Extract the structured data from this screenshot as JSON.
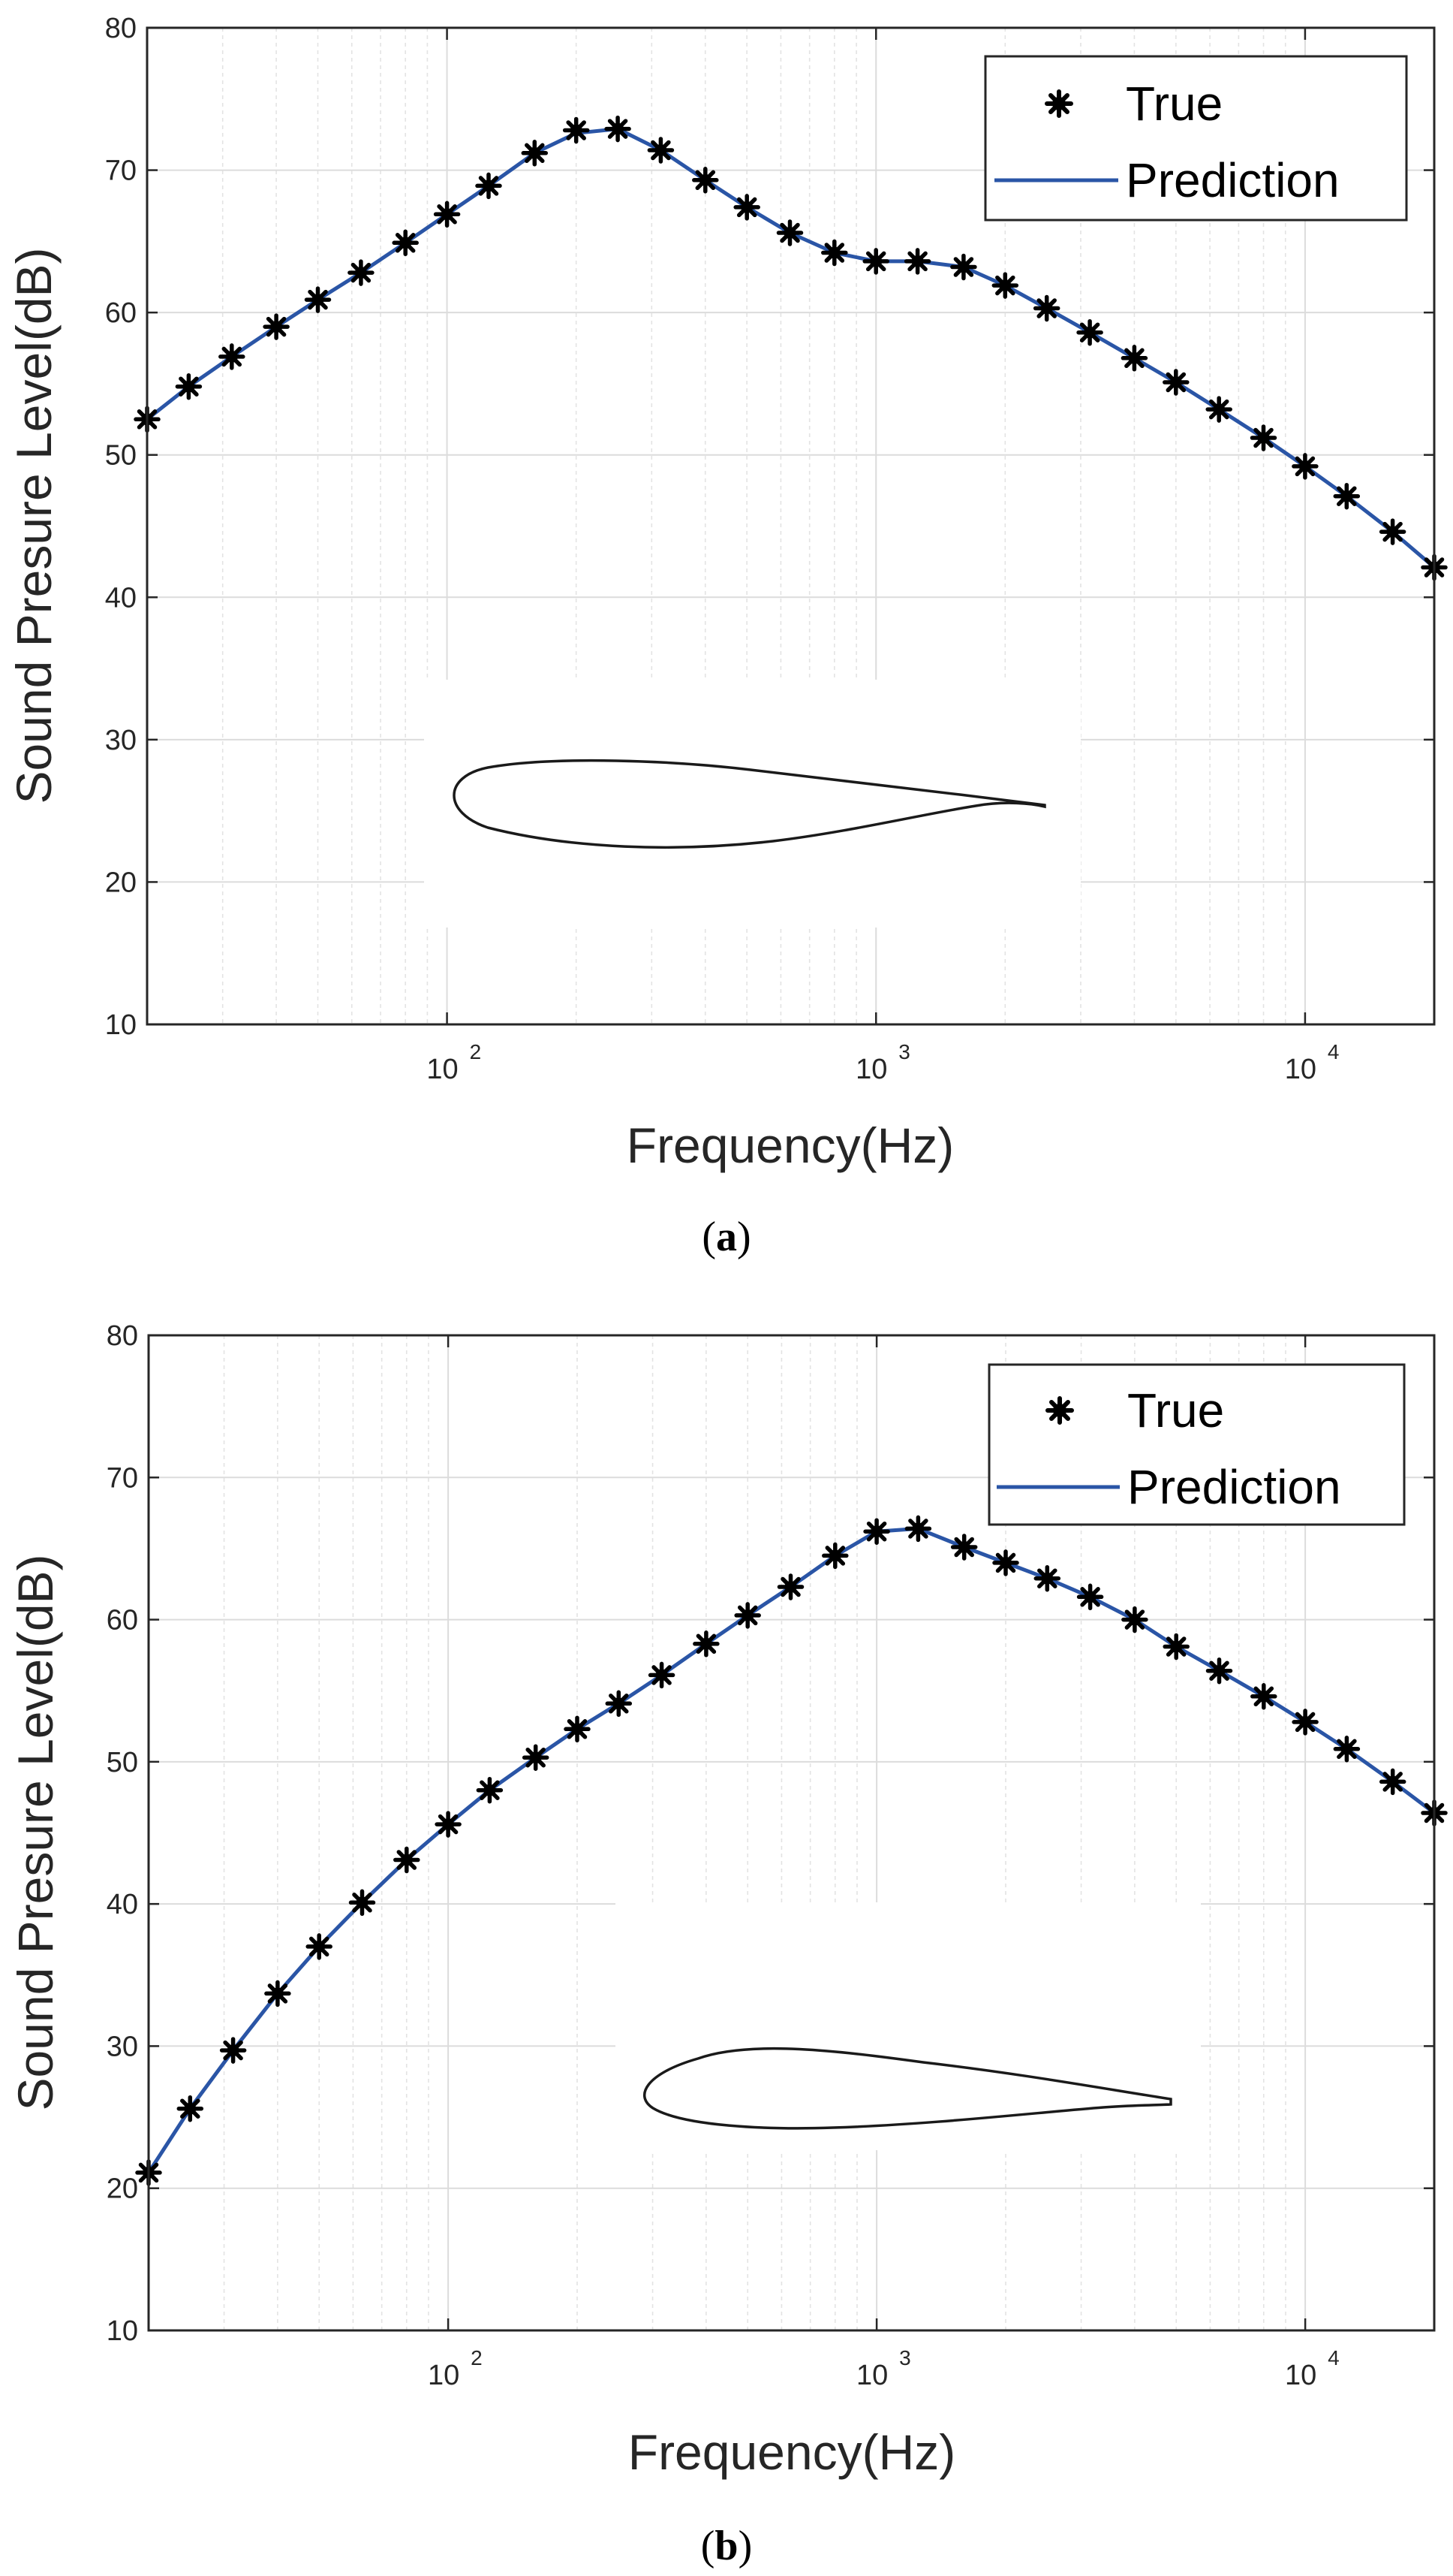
{
  "chart_data": [
    {
      "type": "line",
      "caption": "a",
      "xlabel": "Frequency(Hz)",
      "ylabel": "Sound Presure Level(dB)",
      "xscale": "log",
      "xlim": [
        20,
        20000
      ],
      "ylim": [
        10,
        80
      ],
      "yticks": [
        "10",
        "20",
        "30",
        "40",
        "50",
        "60",
        "70",
        "80"
      ],
      "xticks": [
        {
          "base": "10",
          "exp": "2"
        },
        {
          "base": "10",
          "exp": "3"
        },
        {
          "base": "10",
          "exp": "4"
        }
      ],
      "grid": true,
      "legend_position": "top-right",
      "inset": "airfoil profile (symmetric)",
      "x": [
        20,
        25,
        31.5,
        40,
        50,
        63,
        80,
        100,
        125,
        160,
        200,
        250,
        315,
        400,
        500,
        630,
        800,
        1000,
        1250,
        1600,
        2000,
        2500,
        3150,
        4000,
        5000,
        6300,
        8000,
        10000,
        12500,
        16000,
        20000
      ],
      "series": [
        {
          "name": "True",
          "style": "markers",
          "color": "#000000",
          "values": [
            52.5,
            54.8,
            56.9,
            59.0,
            60.9,
            62.8,
            64.9,
            66.9,
            68.9,
            71.2,
            72.8,
            72.9,
            71.4,
            69.3,
            67.4,
            65.6,
            64.2,
            63.6,
            63.6,
            63.2,
            61.9,
            60.3,
            58.6,
            56.8,
            55.1,
            53.2,
            51.2,
            49.2,
            47.1,
            44.6,
            42.1
          ]
        },
        {
          "name": "Prediction",
          "style": "line",
          "color": "#2a55a6",
          "values": [
            52.5,
            54.8,
            56.9,
            59.0,
            60.9,
            62.8,
            64.9,
            66.9,
            68.9,
            71.2,
            72.6,
            72.9,
            71.4,
            69.3,
            67.4,
            65.6,
            64.2,
            63.6,
            63.6,
            63.2,
            61.9,
            60.3,
            58.6,
            56.8,
            55.1,
            53.2,
            51.2,
            49.2,
            47.1,
            44.6,
            42.1
          ]
        }
      ]
    },
    {
      "type": "line",
      "caption": "b",
      "xlabel": "Frequency(Hz)",
      "ylabel": "Sound Presure Level(dB)",
      "xscale": "log",
      "xlim": [
        20,
        20000
      ],
      "ylim": [
        10,
        80
      ],
      "yticks": [
        "10",
        "20",
        "30",
        "40",
        "50",
        "60",
        "70",
        "80"
      ],
      "xticks": [
        {
          "base": "10",
          "exp": "2"
        },
        {
          "base": "10",
          "exp": "3"
        },
        {
          "base": "10",
          "exp": "4"
        }
      ],
      "grid": true,
      "legend_position": "top-right",
      "inset": "airfoil profile (cambered)",
      "x": [
        20,
        25,
        31.5,
        40,
        50,
        63,
        80,
        100,
        125,
        160,
        200,
        250,
        315,
        400,
        500,
        630,
        800,
        1000,
        1250,
        1600,
        2000,
        2500,
        3150,
        4000,
        5000,
        6300,
        8000,
        10000,
        12500,
        16000,
        20000
      ],
      "series": [
        {
          "name": "True",
          "style": "markers",
          "color": "#000000",
          "values": [
            21.1,
            25.6,
            29.7,
            33.7,
            37.0,
            40.1,
            43.1,
            45.6,
            48.0,
            50.3,
            52.3,
            54.1,
            56.1,
            58.3,
            60.3,
            62.3,
            64.5,
            66.2,
            66.4,
            65.1,
            64.0,
            62.9,
            61.6,
            60.0,
            58.1,
            56.4,
            54.6,
            52.8,
            50.9,
            48.6,
            46.4
          ]
        },
        {
          "name": "Prediction",
          "style": "line",
          "color": "#2a55a6",
          "values": [
            21.1,
            25.6,
            29.7,
            33.7,
            37.0,
            40.1,
            43.1,
            45.6,
            48.0,
            50.3,
            52.3,
            54.1,
            56.1,
            58.3,
            60.3,
            62.3,
            64.5,
            66.2,
            66.4,
            65.1,
            64.0,
            62.9,
            61.6,
            60.0,
            58.1,
            56.4,
            54.6,
            52.8,
            50.9,
            48.6,
            46.4
          ]
        }
      ]
    }
  ]
}
